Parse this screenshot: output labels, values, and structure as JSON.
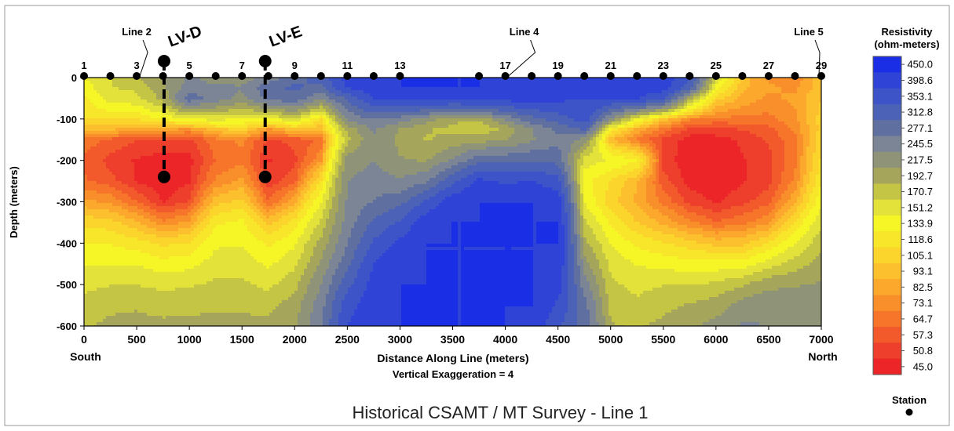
{
  "chart_data": {
    "type": "heatmap",
    "title": "Historical CSAMT / MT Survey - Line 1",
    "xlabel": "Distance Along Line (meters)",
    "ylabel": "Depth (meters)",
    "subtitle": "Vertical Exaggeration = 4",
    "xlim": [
      0,
      7000
    ],
    "ylim": [
      -600,
      0
    ],
    "x_ticks": [
      0,
      500,
      1000,
      1500,
      2000,
      2500,
      3000,
      3500,
      4000,
      4500,
      5000,
      5500,
      6000,
      6500,
      7000
    ],
    "y_ticks": [
      0,
      -100,
      -200,
      -300,
      -400,
      -500,
      -600
    ],
    "x_end_labels": {
      "left": "South",
      "right": "North"
    },
    "grid": false,
    "legend_position": "right",
    "colorbar": {
      "title_line1": "Resistivity",
      "title_line2": "(ohm-meters)",
      "levels": [
        "450.0",
        "398.6",
        "353.1",
        "312.8",
        "277.1",
        "245.5",
        "217.5",
        "192.7",
        "170.7",
        "151.2",
        "133.9",
        "118.6",
        "105.1",
        "93.1",
        "82.5",
        "73.1",
        "64.7",
        "57.3",
        "50.8",
        "45.0"
      ],
      "colors": [
        "#1a2ee6",
        "#2f43d6",
        "#3d53c8",
        "#4c62b6",
        "#5f70a0",
        "#7c8595",
        "#8f9478",
        "#a5a55c",
        "#c4c545",
        "#e2e23a",
        "#f6f627",
        "#f7e62a",
        "#fbd42c",
        "#fcc02e",
        "#fca82d",
        "#f98f2a",
        "#f6752a",
        "#f2592b",
        "#ee3f2c",
        "#ec2529"
      ]
    },
    "stations": {
      "x": [
        0,
        250,
        500,
        750,
        1000,
        1250,
        1500,
        1750,
        2000,
        2250,
        2500,
        2750,
        3000,
        3750,
        4000,
        4250,
        4500,
        4750,
        5000,
        5250,
        5500,
        5750,
        6000,
        6250,
        6500,
        6750,
        7000
      ],
      "labels": [
        {
          "text": "1",
          "x": 0
        },
        {
          "text": "3",
          "x": 500
        },
        {
          "text": "5",
          "x": 1000
        },
        {
          "text": "7",
          "x": 1500
        },
        {
          "text": "9",
          "x": 2000
        },
        {
          "text": "11",
          "x": 2500
        },
        {
          "text": "13",
          "x": 3000
        },
        {
          "text": "17",
          "x": 4000
        },
        {
          "text": "19",
          "x": 4500
        },
        {
          "text": "21",
          "x": 5000
        },
        {
          "text": "23",
          "x": 5500
        },
        {
          "text": "25",
          "x": 6000
        },
        {
          "text": "27",
          "x": 6500
        },
        {
          "text": "29",
          "x": 7000
        }
      ]
    },
    "line_markers": [
      {
        "text": "Line 2",
        "x": 500
      },
      {
        "text": "Line 4",
        "x": 4000
      },
      {
        "text": "Line 5",
        "x": 7000
      }
    ],
    "drill_holes": [
      {
        "name": "LV-D",
        "x": 760,
        "top": 0,
        "bottom": -240
      },
      {
        "name": "LV-E",
        "x": 1720,
        "top": 0,
        "bottom": -240
      }
    ],
    "legend_station_label": "Station",
    "resistivity_field": {
      "depths": [
        0,
        -25,
        -50,
        -100,
        -125,
        -150,
        -200,
        -250,
        -300,
        -350,
        -400,
        -450,
        -500,
        -550,
        -600
      ],
      "rows": [
        {
          "x": 0,
          "r": [
            151,
            140,
            130,
            118,
            95,
            70,
            62,
            66,
            85,
            115,
            135,
            150,
            165,
            178,
            190
          ]
        },
        {
          "x": 250,
          "r": [
            170,
            170,
            160,
            120,
            95,
            62,
            55,
            60,
            80,
            110,
            133,
            150,
            170,
            188,
            198
          ]
        },
        {
          "x": 500,
          "r": [
            190,
            175,
            165,
            120,
            85,
            58,
            50,
            50,
            65,
            95,
            125,
            150,
            170,
            190,
            200
          ]
        },
        {
          "x": 750,
          "r": [
            220,
            210,
            200,
            135,
            85,
            55,
            48,
            46,
            50,
            75,
            115,
            140,
            165,
            185,
            198
          ]
        },
        {
          "x": 1000,
          "r": [
            250,
            260,
            300,
            150,
            80,
            55,
            48,
            50,
            58,
            85,
            120,
            145,
            168,
            188,
            198
          ]
        },
        {
          "x": 1250,
          "r": [
            235,
            250,
            262,
            160,
            100,
            70,
            65,
            75,
            100,
            130,
            148,
            160,
            175,
            188,
            200
          ]
        },
        {
          "x": 1500,
          "r": [
            230,
            250,
            235,
            150,
            110,
            75,
            70,
            85,
            110,
            138,
            150,
            162,
            175,
            188,
            200
          ]
        },
        {
          "x": 1750,
          "r": [
            255,
            300,
            290,
            145,
            80,
            55,
            50,
            52,
            65,
            100,
            130,
            148,
            165,
            185,
            200
          ]
        },
        {
          "x": 2000,
          "r": [
            300,
            320,
            300,
            170,
            100,
            60,
            55,
            62,
            90,
            125,
            148,
            165,
            185,
            205,
            215
          ]
        },
        {
          "x": 2250,
          "r": [
            330,
            300,
            250,
            118,
            95,
            65,
            80,
            120,
            150,
            175,
            200,
            220,
            245,
            262,
            270
          ]
        },
        {
          "x": 2500,
          "r": [
            420,
            400,
            320,
            250,
            200,
            185,
            230,
            245,
            250,
            260,
            275,
            300,
            340,
            380,
            400
          ]
        },
        {
          "x": 2750,
          "r": [
            440,
            430,
            400,
            280,
            250,
            240,
            245,
            260,
            280,
            320,
            360,
            400,
            420,
            430,
            430
          ]
        },
        {
          "x": 3000,
          "r": [
            450,
            450,
            420,
            260,
            215,
            210,
            220,
            250,
            300,
            360,
            410,
            440,
            450,
            450,
            450
          ]
        },
        {
          "x": 3250,
          "r": [
            450,
            450,
            420,
            230,
            195,
            190,
            215,
            270,
            360,
            430,
            450,
            450,
            450,
            450,
            450
          ]
        },
        {
          "x": 3500,
          "r": [
            450,
            450,
            410,
            200,
            185,
            200,
            250,
            340,
            430,
            450,
            450,
            450,
            450,
            450,
            450
          ]
        },
        {
          "x": 3750,
          "r": [
            450,
            450,
            430,
            195,
            175,
            205,
            300,
            410,
            450,
            450,
            450,
            450,
            450,
            450,
            450
          ]
        },
        {
          "x": 4000,
          "r": [
            450,
            440,
            420,
            250,
            200,
            215,
            300,
            390,
            450,
            450,
            450,
            450,
            450,
            450,
            450
          ]
        },
        {
          "x": 4250,
          "r": [
            450,
            440,
            420,
            300,
            245,
            240,
            310,
            400,
            450,
            450,
            450,
            450,
            450,
            450,
            430
          ]
        },
        {
          "x": 4500,
          "r": [
            450,
            440,
            410,
            330,
            285,
            270,
            300,
            370,
            430,
            450,
            450,
            440,
            420,
            390,
            360
          ]
        },
        {
          "x": 4750,
          "r": [
            450,
            430,
            400,
            380,
            320,
            230,
            160,
            140,
            150,
            175,
            200,
            230,
            260,
            290,
            300
          ]
        },
        {
          "x": 5000,
          "r": [
            440,
            420,
            400,
            240,
            130,
            95,
            150,
            118,
            110,
            130,
            150,
            165,
            175,
            185,
            195
          ]
        },
        {
          "x": 5250,
          "r": [
            440,
            430,
            400,
            150,
            90,
            70,
            135,
            95,
            90,
            105,
            130,
            150,
            165,
            175,
            190
          ]
        },
        {
          "x": 5500,
          "r": [
            430,
            420,
            360,
            100,
            70,
            55,
            55,
            60,
            70,
            90,
            120,
            145,
            170,
            185,
            200
          ]
        },
        {
          "x": 5750,
          "r": [
            360,
            320,
            200,
            75,
            55,
            48,
            46,
            48,
            55,
            75,
            110,
            140,
            170,
            195,
            215
          ]
        },
        {
          "x": 6000,
          "r": [
            170,
            140,
            110,
            70,
            55,
            48,
            45,
            46,
            50,
            65,
            100,
            140,
            175,
            205,
            225
          ]
        },
        {
          "x": 6250,
          "r": [
            100,
            95,
            90,
            70,
            58,
            52,
            50,
            50,
            55,
            70,
            100,
            140,
            190,
            230,
            250
          ]
        },
        {
          "x": 6500,
          "r": [
            80,
            85,
            80,
            70,
            62,
            58,
            55,
            55,
            62,
            80,
            120,
            160,
            210,
            240,
            245
          ]
        },
        {
          "x": 6750,
          "r": [
            75,
            80,
            85,
            80,
            75,
            70,
            70,
            75,
            90,
            120,
            150,
            180,
            215,
            235,
            240
          ]
        },
        {
          "x": 7000,
          "r": [
            100,
            100,
            105,
            110,
            110,
            115,
            120,
            130,
            145,
            165,
            185,
            205,
            220,
            235,
            240
          ]
        }
      ]
    }
  }
}
